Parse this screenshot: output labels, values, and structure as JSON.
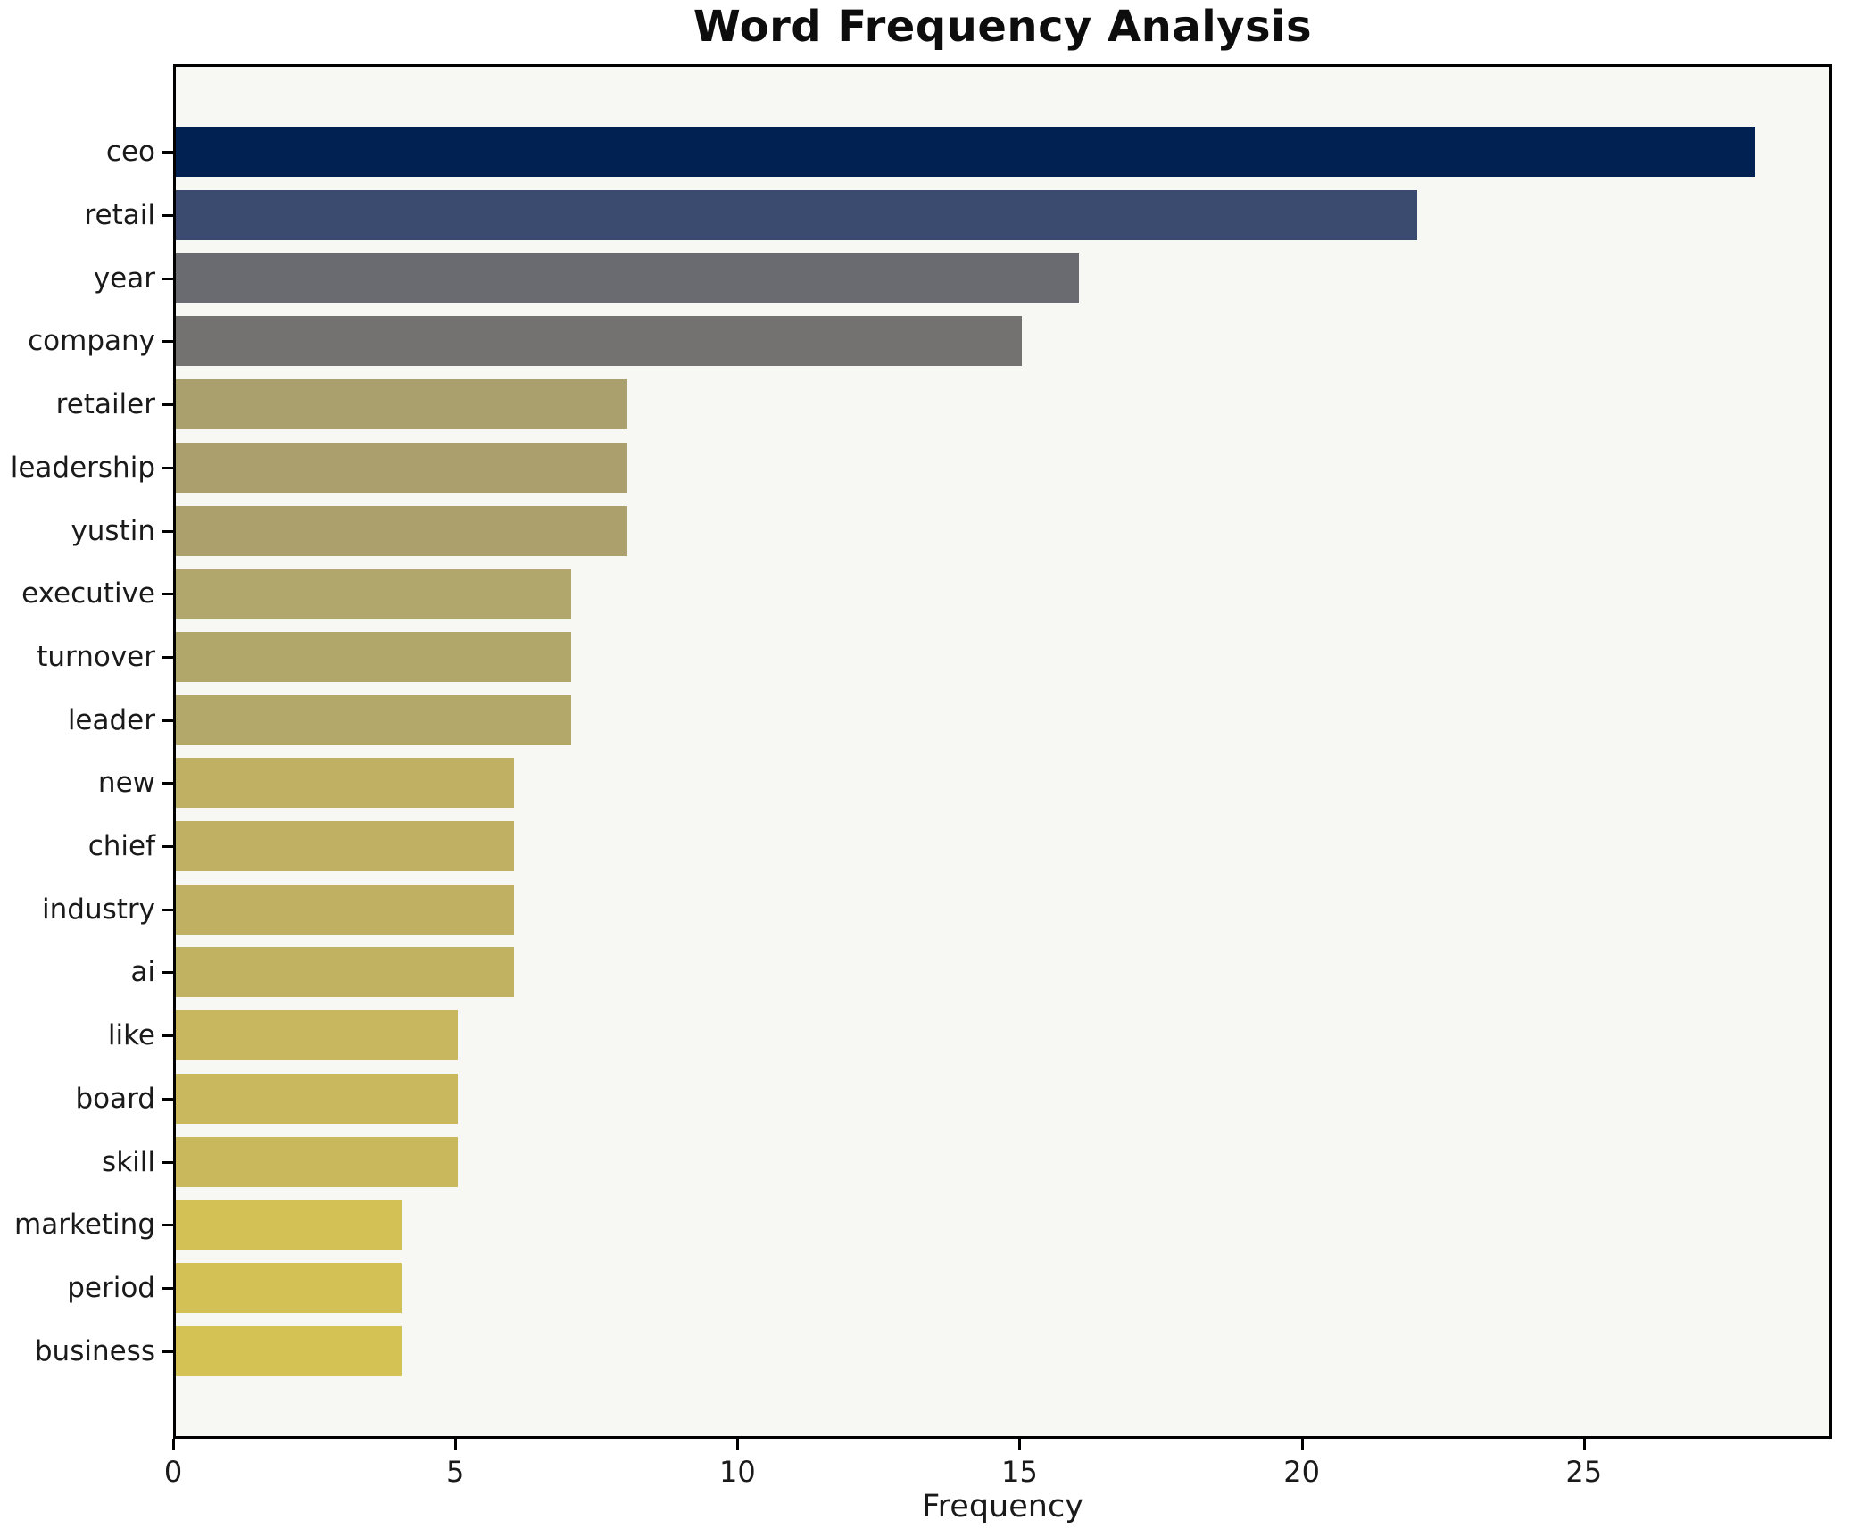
{
  "title": "Word Frequency Analysis",
  "chart_data": {
    "type": "bar",
    "orientation": "horizontal",
    "title": "Word Frequency Analysis",
    "xlabel": "Frequency",
    "ylabel": "",
    "categories": [
      "ceo",
      "retail",
      "year",
      "company",
      "retailer",
      "leadership",
      "yustin",
      "executive",
      "turnover",
      "leader",
      "new",
      "chief",
      "industry",
      "ai",
      "like",
      "board",
      "skill",
      "marketing",
      "period",
      "business"
    ],
    "values": [
      28,
      22,
      16,
      15,
      8,
      8,
      8,
      7,
      7,
      7,
      6,
      6,
      6,
      6,
      5,
      5,
      5,
      4,
      4,
      4
    ],
    "bar_colors": [
      "#012152",
      "#3b4a6f",
      "#6a6b70",
      "#737271",
      "#aaa06d",
      "#aba06d",
      "#aca16d",
      "#b1a66b",
      "#b2a76a",
      "#b3a86a",
      "#bfb064",
      "#c0b063",
      "#c0b162",
      "#c1b262",
      "#c8b75e",
      "#c9b85d",
      "#cab95c",
      "#d3c156",
      "#d4c155",
      "#d4c255"
    ],
    "xlim": [
      0,
      29.4
    ],
    "xticks": [
      0,
      5,
      10,
      15,
      20,
      25
    ],
    "grid": false,
    "legend": "none",
    "colors": {
      "plot_background": "#f7f7f4",
      "figure_background": "#ffffff",
      "spine": "#000000",
      "text": "#1a1a1a"
    }
  }
}
